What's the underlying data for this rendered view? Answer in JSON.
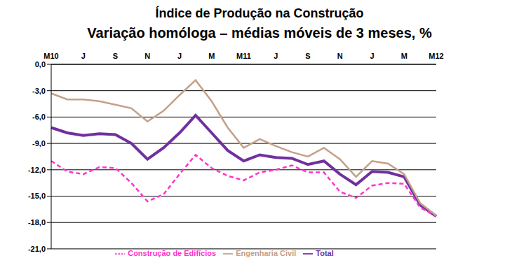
{
  "chart_data": {
    "type": "line",
    "title": "Índice de Produção na Construção",
    "subtitle": "Variação homóloga – médias móveis de 3 meses, %",
    "categories": [
      "M10",
      null,
      "J",
      null,
      "S",
      null,
      "N",
      null,
      "J",
      null,
      "M",
      null,
      "M11",
      null,
      "J",
      null,
      "S",
      null,
      "N",
      null,
      "J",
      null,
      "M",
      null,
      "M12"
    ],
    "series": [
      {
        "name": "Total",
        "color": "#7030a0",
        "line_style": "solid",
        "values": [
          -7.2,
          -7.8,
          -8.1,
          -7.9,
          -8.0,
          -9.0,
          -10.8,
          -9.5,
          -7.8,
          -5.8,
          -7.8,
          -9.8,
          -11.0,
          -10.3,
          -10.6,
          -10.7,
          -11.4,
          -11.0,
          -12.5,
          -13.7,
          -12.2,
          -12.3,
          -12.8,
          -16.0,
          -17.3
        ]
      },
      {
        "name": "Construção de Edifícios",
        "color": "#ff33cc",
        "line_style": "dashed",
        "values": [
          -11.0,
          -12.2,
          -12.5,
          -11.7,
          -11.8,
          -13.5,
          -15.6,
          -14.8,
          -12.5,
          -10.3,
          -11.8,
          -12.7,
          -13.2,
          -12.3,
          -12.0,
          -11.5,
          -12.3,
          -12.3,
          -14.5,
          -15.2,
          -13.8,
          -13.5,
          -13.6,
          -16.3,
          -17.3
        ]
      },
      {
        "name": "Engenharia Civil",
        "color": "#c4a088",
        "line_style": "solid",
        "values": [
          -3.3,
          -4.0,
          -4.0,
          -4.2,
          -4.6,
          -5.0,
          -6.5,
          -5.3,
          -3.5,
          -1.8,
          -4.2,
          -7.2,
          -9.5,
          -8.5,
          -9.3,
          -10.0,
          -10.5,
          -9.5,
          -10.8,
          -12.8,
          -11.0,
          -11.3,
          -12.5,
          -15.8,
          -17.2
        ]
      }
    ],
    "ylim": [
      -21,
      0
    ],
    "yticks": [
      {
        "value": 0,
        "label": "0,0"
      },
      {
        "value": -3,
        "label": "-3,0"
      },
      {
        "value": -6,
        "label": "-6,0"
      },
      {
        "value": -9,
        "label": "-9,0"
      },
      {
        "value": -12,
        "label": "-12,0"
      },
      {
        "value": -15,
        "label": "-15,0"
      },
      {
        "value": -18,
        "label": "-18,0"
      },
      {
        "value": -21,
        "label": "-21,0"
      }
    ],
    "grid": true,
    "legend": "bottom",
    "marker": "none"
  }
}
